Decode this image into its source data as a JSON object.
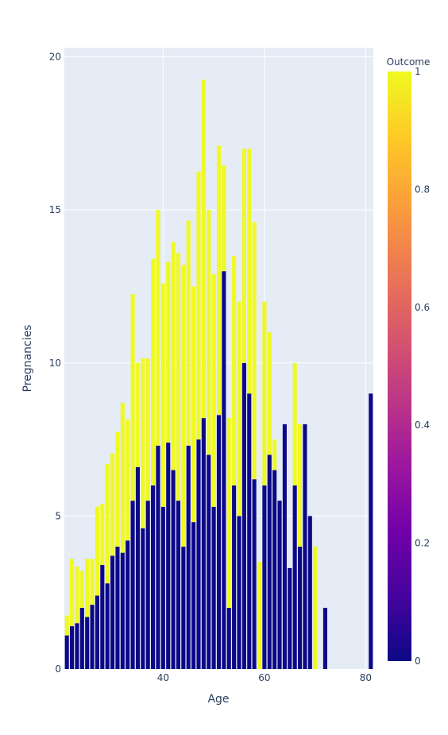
{
  "chart_data": {
    "type": "bar",
    "barmode": "stack",
    "xlabel": "Age",
    "ylabel": "Pregnancies",
    "xticks": [
      40,
      60,
      80
    ],
    "yticks": [
      0,
      5,
      10,
      15,
      20
    ],
    "ylim": [
      0,
      20.3
    ],
    "xlim": [
      20.5,
      81.5
    ],
    "grid": true,
    "colorbar": {
      "title": "Outcome",
      "ticks": [
        "0",
        "0.2",
        "0.4",
        "0.6",
        "0.8",
        "1"
      ],
      "range": [
        0,
        1
      ],
      "colors": [
        "#0d0887",
        "#46039f",
        "#7201a8",
        "#9c179e",
        "#bd3786",
        "#d8576b",
        "#ed7953",
        "#fb9f3a",
        "#fdca26",
        "#f0f921"
      ]
    },
    "series": [
      {
        "outcome": 0,
        "color": "#0d0887",
        "x": [
          21,
          22,
          23,
          24,
          25,
          26,
          27,
          28,
          29,
          30,
          31,
          32,
          33,
          34,
          35,
          36,
          37,
          38,
          39,
          40,
          41,
          42,
          43,
          44,
          45,
          46,
          47,
          48,
          49,
          50,
          51,
          52,
          53,
          54,
          55,
          56,
          57,
          58,
          59,
          60,
          61,
          62,
          63,
          64,
          65,
          66,
          67,
          68,
          69,
          72,
          81
        ],
        "values": [
          1.1,
          1.4,
          1.5,
          2.0,
          1.7,
          2.1,
          2.4,
          3.4,
          2.8,
          3.7,
          4.0,
          3.8,
          4.2,
          5.5,
          6.6,
          4.6,
          5.5,
          6.0,
          7.3,
          5.3,
          7.4,
          6.5,
          5.5,
          4.0,
          7.3,
          4.8,
          7.5,
          8.2,
          7.0,
          5.3,
          8.3,
          13.0,
          2.0,
          6.0,
          5.0,
          10.0,
          9.0,
          6.2,
          0.0,
          6.0,
          7.0,
          6.5,
          5.5,
          8.0,
          3.3,
          6.0,
          4.0,
          8.0,
          5.0,
          2.0,
          9.0
        ]
      },
      {
        "outcome": 1,
        "color": "#f0f921",
        "x": [
          21,
          22,
          23,
          24,
          25,
          26,
          27,
          28,
          29,
          30,
          31,
          32,
          33,
          34,
          35,
          36,
          37,
          38,
          39,
          40,
          41,
          42,
          43,
          44,
          45,
          46,
          47,
          48,
          49,
          50,
          51,
          52,
          53,
          54,
          55,
          56,
          57,
          58,
          59,
          60,
          61,
          62,
          63,
          64,
          65,
          66,
          67,
          68,
          69,
          70,
          72,
          81
        ],
        "values": [
          0.65,
          2.2,
          1.85,
          1.2,
          1.9,
          1.5,
          2.9,
          2.0,
          3.9,
          3.35,
          3.75,
          4.9,
          3.95,
          6.75,
          3.4,
          5.55,
          4.65,
          7.4,
          7.7,
          7.3,
          5.9,
          7.45,
          8.1,
          9.2,
          7.35,
          7.7,
          8.75,
          11.05,
          8.0,
          7.6,
          8.8,
          3.45,
          6.2,
          7.5,
          7.0,
          7.0,
          8.0,
          8.4,
          3.5,
          6.0,
          4.0,
          1.0,
          0.0,
          0.0,
          0.0,
          4.0,
          4.0,
          0.0,
          0.0,
          4.0,
          0.0,
          0.0
        ]
      }
    ]
  }
}
